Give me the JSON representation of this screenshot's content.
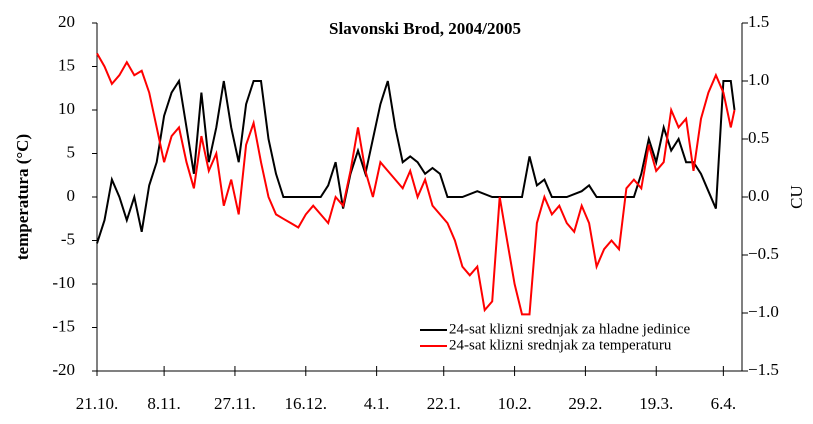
{
  "chart_data": {
    "type": "line",
    "title": "Slavonski Brod, 2004/2005",
    "ylabel": "temperatura (°C)",
    "y2label": "CU",
    "xlim": [
      0,
      173
    ],
    "xticks": [
      {
        "value": 0,
        "label": "21.10."
      },
      {
        "value": 18,
        "label": "8.11."
      },
      {
        "value": 37,
        "label": "27.11."
      },
      {
        "value": 56,
        "label": "16.12."
      },
      {
        "value": 75,
        "label": "4.1."
      },
      {
        "value": 93,
        "label": "22.1."
      },
      {
        "value": 112,
        "label": "10.2."
      },
      {
        "value": 131,
        "label": "29.2."
      },
      {
        "value": 150,
        "label": "19.3."
      },
      {
        "value": 168,
        "label": "6.4."
      }
    ],
    "ylim": [
      -20,
      20
    ],
    "yticks": [
      -20,
      -15,
      -10,
      -5,
      0,
      5,
      10,
      15,
      20
    ],
    "y2lim": [
      -1.5,
      1.5
    ],
    "y2ticks": [
      {
        "value": -1.5,
        "label": "−1.5"
      },
      {
        "value": -1,
        "label": "−1.0"
      },
      {
        "value": -0.5,
        "label": "−0.5"
      },
      {
        "value": 0,
        "label": "0.0"
      },
      {
        "value": 0.5,
        "label": "0.5"
      },
      {
        "value": 1,
        "label": "1.0"
      },
      {
        "value": 1.5,
        "label": "1.5"
      }
    ],
    "series": [
      {
        "name": "24-sat klizni srednjak za hladne jedinice",
        "color": "#000000",
        "axis": "y2",
        "x": [
          0,
          2,
          4,
          6,
          8,
          10,
          12,
          14,
          16,
          18,
          20,
          22,
          24,
          26,
          28,
          30,
          32,
          34,
          36,
          38,
          40,
          42,
          44,
          46,
          48,
          50,
          52,
          56,
          60,
          62,
          64,
          66,
          68,
          70,
          72,
          74,
          76,
          78,
          80,
          82,
          84,
          86,
          88,
          90,
          92,
          94,
          98,
          102,
          106,
          110,
          114,
          116,
          118,
          120,
          122,
          126,
          130,
          132,
          134,
          140,
          144,
          146,
          148,
          150,
          152,
          154,
          156,
          158,
          160,
          162,
          164,
          166,
          168,
          170,
          171
        ],
        "values": [
          -0.4,
          -0.2,
          0.15,
          0,
          -0.2,
          0,
          -0.3,
          0.1,
          0.3,
          0.7,
          0.9,
          1,
          0.6,
          0.2,
          0.9,
          0.3,
          0.6,
          1,
          0.6,
          0.3,
          0.8,
          1,
          1,
          0.5,
          0.2,
          0,
          0,
          0,
          0,
          0.1,
          0.3,
          -0.1,
          0.2,
          0.4,
          0.2,
          0.5,
          0.8,
          1,
          0.6,
          0.3,
          0.35,
          0.3,
          0.2,
          0.25,
          0.2,
          0,
          0,
          0.05,
          0,
          0,
          0,
          0.35,
          0.1,
          0.15,
          0,
          0,
          0.05,
          0.1,
          0,
          0,
          0,
          0.2,
          0.5,
          0.3,
          0.6,
          0.4,
          0.5,
          0.3,
          0.3,
          0.2,
          0.05,
          -0.1,
          1,
          1,
          0.75
        ]
      },
      {
        "name": "24-sat klizni srednjak za temperaturu",
        "color": "#ff0000",
        "x": [
          0,
          2,
          4,
          6,
          8,
          10,
          12,
          14,
          16,
          18,
          20,
          22,
          24,
          26,
          28,
          30,
          32,
          34,
          36,
          38,
          40,
          42,
          44,
          46,
          48,
          50,
          52,
          54,
          56,
          58,
          60,
          62,
          64,
          66,
          68,
          70,
          72,
          74,
          76,
          78,
          80,
          82,
          84,
          86,
          88,
          90,
          92,
          94,
          96,
          98,
          100,
          102,
          104,
          106,
          108,
          110,
          112,
          114,
          116,
          118,
          120,
          122,
          124,
          126,
          128,
          130,
          132,
          134,
          136,
          138,
          140,
          142,
          144,
          146,
          148,
          150,
          152,
          154,
          156,
          158,
          160,
          162,
          164,
          166,
          168,
          170,
          171
        ],
        "values": [
          16.5,
          15,
          13,
          14,
          15.5,
          14,
          14.5,
          12,
          8,
          4,
          7,
          8,
          4,
          1,
          7,
          3,
          5,
          -1,
          2,
          -2,
          6,
          8.5,
          4,
          0,
          -2,
          -2.5,
          -3,
          -3.5,
          -2,
          -1,
          -2,
          -3,
          0,
          -1,
          3,
          8,
          3,
          0,
          4,
          3,
          2,
          1,
          3,
          0,
          2,
          -1,
          -2,
          -3,
          -5,
          -8,
          -9,
          -8,
          -13,
          -12,
          0,
          -5,
          -10,
          -13.5,
          -13.5,
          -3,
          0,
          -2,
          -1,
          -3,
          -4,
          -1,
          -3,
          -8,
          -6,
          -5,
          -6,
          1,
          2,
          1,
          6,
          3,
          4,
          10,
          8,
          9,
          3,
          9,
          12,
          14,
          12,
          8,
          10
        ]
      }
    ]
  }
}
